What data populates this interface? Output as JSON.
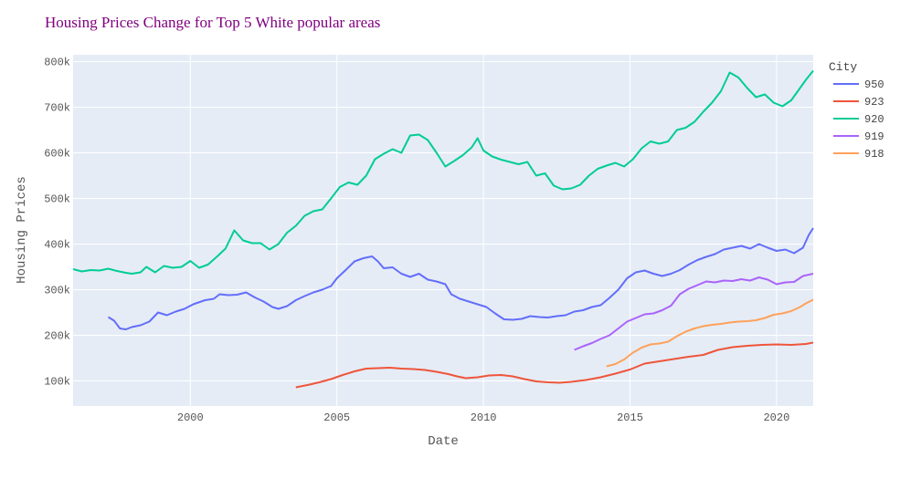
{
  "chart_data": {
    "type": "line",
    "title": "Housing Prices Change for Top 5 White popular areas",
    "xlabel": "Date",
    "ylabel": "Housing Prices",
    "xlim": [
      1996.0,
      2021.25
    ],
    "ylim": [
      45000,
      815000
    ],
    "x_ticks": [
      2000,
      2005,
      2010,
      2015,
      2020
    ],
    "y_ticks": [
      {
        "value": 100000,
        "label": "100k"
      },
      {
        "value": 200000,
        "label": "200k"
      },
      {
        "value": 300000,
        "label": "300k"
      },
      {
        "value": 400000,
        "label": "400k"
      },
      {
        "value": 500000,
        "label": "500k"
      },
      {
        "value": 600000,
        "label": "600k"
      },
      {
        "value": 700000,
        "label": "700k"
      },
      {
        "value": 800000,
        "label": "800k"
      }
    ],
    "grid": true,
    "legend_title": "City",
    "legend_position": "right",
    "colors": {
      "title": "#800080",
      "plot_bg": "#e5ecf6",
      "grid": "#ffffff"
    },
    "series": [
      {
        "name": "950",
        "color": "#636efa",
        "points": [
          [
            1997.2,
            240000
          ],
          [
            1997.4,
            232000
          ],
          [
            1997.6,
            215000
          ],
          [
            1997.8,
            213000
          ],
          [
            1998.0,
            218000
          ],
          [
            1998.3,
            222000
          ],
          [
            1998.6,
            230000
          ],
          [
            1998.9,
            250000
          ],
          [
            1999.2,
            244000
          ],
          [
            1999.5,
            252000
          ],
          [
            1999.8,
            258000
          ],
          [
            2000.1,
            268000
          ],
          [
            2000.5,
            277000
          ],
          [
            2000.8,
            280000
          ],
          [
            2001.0,
            290000
          ],
          [
            2001.3,
            288000
          ],
          [
            2001.6,
            289000
          ],
          [
            2001.9,
            294000
          ],
          [
            2002.2,
            283000
          ],
          [
            2002.5,
            274000
          ],
          [
            2002.8,
            262000
          ],
          [
            2003.0,
            258000
          ],
          [
            2003.3,
            264000
          ],
          [
            2003.6,
            277000
          ],
          [
            2003.9,
            286000
          ],
          [
            2004.2,
            294000
          ],
          [
            2004.5,
            300000
          ],
          [
            2004.8,
            308000
          ],
          [
            2005.0,
            325000
          ],
          [
            2005.3,
            343000
          ],
          [
            2005.6,
            362000
          ],
          [
            2005.9,
            369000
          ],
          [
            2006.2,
            373000
          ],
          [
            2006.4,
            362000
          ],
          [
            2006.6,
            347000
          ],
          [
            2006.9,
            349000
          ],
          [
            2007.2,
            335000
          ],
          [
            2007.5,
            328000
          ],
          [
            2007.8,
            335000
          ],
          [
            2008.1,
            322000
          ],
          [
            2008.4,
            318000
          ],
          [
            2008.7,
            312000
          ],
          [
            2008.9,
            290000
          ],
          [
            2009.2,
            280000
          ],
          [
            2009.5,
            274000
          ],
          [
            2009.8,
            268000
          ],
          [
            2010.1,
            262000
          ],
          [
            2010.4,
            248000
          ],
          [
            2010.7,
            235000
          ],
          [
            2011.0,
            234000
          ],
          [
            2011.3,
            236000
          ],
          [
            2011.6,
            242000
          ],
          [
            2011.9,
            240000
          ],
          [
            2012.2,
            239000
          ],
          [
            2012.5,
            242000
          ],
          [
            2012.8,
            244000
          ],
          [
            2013.1,
            252000
          ],
          [
            2013.4,
            255000
          ],
          [
            2013.7,
            262000
          ],
          [
            2014.0,
            266000
          ],
          [
            2014.3,
            282000
          ],
          [
            2014.6,
            300000
          ],
          [
            2014.9,
            325000
          ],
          [
            2015.2,
            338000
          ],
          [
            2015.5,
            342000
          ],
          [
            2015.8,
            335000
          ],
          [
            2016.1,
            330000
          ],
          [
            2016.4,
            335000
          ],
          [
            2016.7,
            343000
          ],
          [
            2017.0,
            355000
          ],
          [
            2017.3,
            365000
          ],
          [
            2017.6,
            372000
          ],
          [
            2017.9,
            378000
          ],
          [
            2018.2,
            388000
          ],
          [
            2018.5,
            392000
          ],
          [
            2018.8,
            396000
          ],
          [
            2019.1,
            390000
          ],
          [
            2019.4,
            400000
          ],
          [
            2019.7,
            392000
          ],
          [
            2020.0,
            385000
          ],
          [
            2020.3,
            388000
          ],
          [
            2020.6,
            380000
          ],
          [
            2020.9,
            392000
          ],
          [
            2021.1,
            420000
          ],
          [
            2021.25,
            435000
          ]
        ]
      },
      {
        "name": "923",
        "color": "#ef553b",
        "points": [
          [
            2003.6,
            86000
          ],
          [
            2004.0,
            91000
          ],
          [
            2004.4,
            97000
          ],
          [
            2004.8,
            104000
          ],
          [
            2005.2,
            113000
          ],
          [
            2005.6,
            121000
          ],
          [
            2006.0,
            127000
          ],
          [
            2006.4,
            128000
          ],
          [
            2006.8,
            129000
          ],
          [
            2007.2,
            127000
          ],
          [
            2007.6,
            126000
          ],
          [
            2008.0,
            124000
          ],
          [
            2008.4,
            120000
          ],
          [
            2008.8,
            115000
          ],
          [
            2009.1,
            110000
          ],
          [
            2009.4,
            106000
          ],
          [
            2009.8,
            108000
          ],
          [
            2010.2,
            112000
          ],
          [
            2010.6,
            113000
          ],
          [
            2011.0,
            110000
          ],
          [
            2011.4,
            104000
          ],
          [
            2011.8,
            99000
          ],
          [
            2012.2,
            97000
          ],
          [
            2012.6,
            96000
          ],
          [
            2013.0,
            98000
          ],
          [
            2013.5,
            102000
          ],
          [
            2014.0,
            108000
          ],
          [
            2014.5,
            116000
          ],
          [
            2015.0,
            125000
          ],
          [
            2015.5,
            138000
          ],
          [
            2016.0,
            143000
          ],
          [
            2016.5,
            148000
          ],
          [
            2017.0,
            153000
          ],
          [
            2017.5,
            157000
          ],
          [
            2018.0,
            168000
          ],
          [
            2018.5,
            174000
          ],
          [
            2019.0,
            177000
          ],
          [
            2019.5,
            179000
          ],
          [
            2020.0,
            180000
          ],
          [
            2020.5,
            179000
          ],
          [
            2021.0,
            181000
          ],
          [
            2021.25,
            184000
          ]
        ]
      },
      {
        "name": "920",
        "color": "#00cc96",
        "points": [
          [
            1996.0,
            345000
          ],
          [
            1996.3,
            340000
          ],
          [
            1996.6,
            343000
          ],
          [
            1996.9,
            342000
          ],
          [
            1997.2,
            346000
          ],
          [
            1997.5,
            341000
          ],
          [
            1997.8,
            337000
          ],
          [
            1998.0,
            335000
          ],
          [
            1998.3,
            338000
          ],
          [
            1998.5,
            350000
          ],
          [
            1998.8,
            338000
          ],
          [
            1999.1,
            352000
          ],
          [
            1999.4,
            348000
          ],
          [
            1999.7,
            350000
          ],
          [
            2000.0,
            363000
          ],
          [
            2000.3,
            348000
          ],
          [
            2000.6,
            355000
          ],
          [
            2000.9,
            372000
          ],
          [
            2001.2,
            390000
          ],
          [
            2001.5,
            430000
          ],
          [
            2001.8,
            408000
          ],
          [
            2002.1,
            402000
          ],
          [
            2002.4,
            402000
          ],
          [
            2002.7,
            388000
          ],
          [
            2003.0,
            400000
          ],
          [
            2003.3,
            425000
          ],
          [
            2003.6,
            440000
          ],
          [
            2003.9,
            462000
          ],
          [
            2004.2,
            472000
          ],
          [
            2004.5,
            476000
          ],
          [
            2004.8,
            500000
          ],
          [
            2005.1,
            525000
          ],
          [
            2005.4,
            535000
          ],
          [
            2005.7,
            530000
          ],
          [
            2006.0,
            550000
          ],
          [
            2006.3,
            586000
          ],
          [
            2006.6,
            598000
          ],
          [
            2006.9,
            608000
          ],
          [
            2007.2,
            600000
          ],
          [
            2007.5,
            638000
          ],
          [
            2007.8,
            640000
          ],
          [
            2008.1,
            628000
          ],
          [
            2008.4,
            600000
          ],
          [
            2008.7,
            570000
          ],
          [
            2009.0,
            582000
          ],
          [
            2009.3,
            595000
          ],
          [
            2009.6,
            612000
          ],
          [
            2009.8,
            632000
          ],
          [
            2010.0,
            605000
          ],
          [
            2010.3,
            592000
          ],
          [
            2010.6,
            585000
          ],
          [
            2010.9,
            580000
          ],
          [
            2011.2,
            575000
          ],
          [
            2011.5,
            580000
          ],
          [
            2011.8,
            550000
          ],
          [
            2012.1,
            555000
          ],
          [
            2012.4,
            528000
          ],
          [
            2012.7,
            520000
          ],
          [
            2013.0,
            522000
          ],
          [
            2013.3,
            530000
          ],
          [
            2013.6,
            550000
          ],
          [
            2013.9,
            565000
          ],
          [
            2014.2,
            572000
          ],
          [
            2014.5,
            578000
          ],
          [
            2014.8,
            570000
          ],
          [
            2015.1,
            586000
          ],
          [
            2015.4,
            610000
          ],
          [
            2015.7,
            625000
          ],
          [
            2016.0,
            620000
          ],
          [
            2016.3,
            625000
          ],
          [
            2016.6,
            650000
          ],
          [
            2016.9,
            655000
          ],
          [
            2017.2,
            668000
          ],
          [
            2017.5,
            690000
          ],
          [
            2017.8,
            710000
          ],
          [
            2018.1,
            735000
          ],
          [
            2018.4,
            776000
          ],
          [
            2018.7,
            765000
          ],
          [
            2019.0,
            742000
          ],
          [
            2019.3,
            722000
          ],
          [
            2019.6,
            728000
          ],
          [
            2019.9,
            710000
          ],
          [
            2020.2,
            702000
          ],
          [
            2020.5,
            715000
          ],
          [
            2020.8,
            742000
          ],
          [
            2021.0,
            760000
          ],
          [
            2021.25,
            780000
          ]
        ]
      },
      {
        "name": "919",
        "color": "#ab63fa",
        "points": [
          [
            2013.1,
            168000
          ],
          [
            2013.4,
            176000
          ],
          [
            2013.7,
            183000
          ],
          [
            2014.0,
            192000
          ],
          [
            2014.3,
            200000
          ],
          [
            2014.6,
            215000
          ],
          [
            2014.9,
            230000
          ],
          [
            2015.2,
            238000
          ],
          [
            2015.5,
            246000
          ],
          [
            2015.8,
            248000
          ],
          [
            2016.1,
            255000
          ],
          [
            2016.4,
            265000
          ],
          [
            2016.7,
            290000
          ],
          [
            2017.0,
            302000
          ],
          [
            2017.3,
            310000
          ],
          [
            2017.6,
            318000
          ],
          [
            2017.9,
            316000
          ],
          [
            2018.2,
            320000
          ],
          [
            2018.5,
            319000
          ],
          [
            2018.8,
            323000
          ],
          [
            2019.1,
            320000
          ],
          [
            2019.4,
            327000
          ],
          [
            2019.7,
            322000
          ],
          [
            2020.0,
            312000
          ],
          [
            2020.3,
            316000
          ],
          [
            2020.6,
            317000
          ],
          [
            2020.9,
            330000
          ],
          [
            2021.25,
            335000
          ]
        ]
      },
      {
        "name": "918",
        "color": "#ffa15a",
        "points": [
          [
            2014.2,
            132000
          ],
          [
            2014.5,
            137000
          ],
          [
            2014.8,
            147000
          ],
          [
            2015.1,
            162000
          ],
          [
            2015.4,
            173000
          ],
          [
            2015.7,
            180000
          ],
          [
            2016.0,
            182000
          ],
          [
            2016.3,
            186000
          ],
          [
            2016.6,
            198000
          ],
          [
            2016.9,
            208000
          ],
          [
            2017.2,
            215000
          ],
          [
            2017.5,
            220000
          ],
          [
            2017.8,
            223000
          ],
          [
            2018.1,
            225000
          ],
          [
            2018.4,
            228000
          ],
          [
            2018.7,
            230000
          ],
          [
            2019.0,
            231000
          ],
          [
            2019.3,
            233000
          ],
          [
            2019.6,
            238000
          ],
          [
            2019.9,
            245000
          ],
          [
            2020.2,
            248000
          ],
          [
            2020.5,
            253000
          ],
          [
            2020.8,
            262000
          ],
          [
            2021.0,
            270000
          ],
          [
            2021.25,
            278000
          ]
        ]
      }
    ]
  }
}
